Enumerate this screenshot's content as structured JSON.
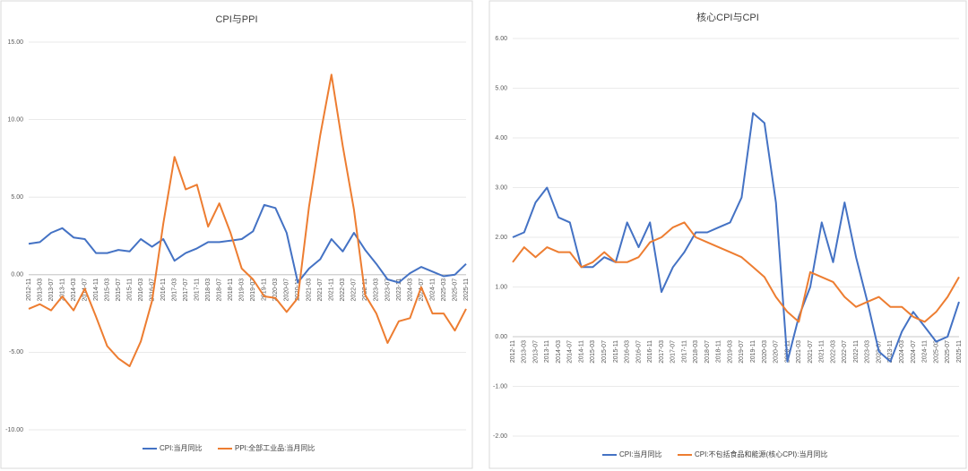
{
  "chart_data": [
    {
      "type": "line",
      "title": "CPI与PPI",
      "categories": [
        "2012-11",
        "2013-03",
        "2013-07",
        "2013-11",
        "2014-03",
        "2014-07",
        "2014-11",
        "2015-03",
        "2015-07",
        "2015-11",
        "2016-03",
        "2016-07",
        "2016-11",
        "2017-03",
        "2017-07",
        "2017-11",
        "2018-03",
        "2018-07",
        "2018-11",
        "2019-03",
        "2019-07",
        "2019-11",
        "2020-03",
        "2020-07",
        "2020-11",
        "2021-03",
        "2021-07",
        "2021-11",
        "2022-03",
        "2022-07",
        "2022-11",
        "2023-03",
        "2023-07",
        "2023-11",
        "2024-03",
        "2024-07",
        "2024-11",
        "2025-03",
        "2025-07",
        "2025-11"
      ],
      "series": [
        {
          "name": "CPI:当月同比",
          "color": "#4472c4",
          "values": [
            2.0,
            2.1,
            2.7,
            3.0,
            2.4,
            2.3,
            1.4,
            1.4,
            1.6,
            1.5,
            2.3,
            1.8,
            2.3,
            0.9,
            1.4,
            1.7,
            2.1,
            2.1,
            2.2,
            2.3,
            2.8,
            4.5,
            4.3,
            2.7,
            -0.5,
            0.4,
            1.0,
            2.3,
            1.5,
            2.7,
            1.6,
            0.7,
            -0.3,
            -0.5,
            0.1,
            0.5,
            0.2,
            -0.1,
            0.0,
            0.7
          ]
        },
        {
          "name": "PPI:全部工业品:当月同比",
          "color": "#ed7d31",
          "values": [
            -2.2,
            -1.9,
            -2.3,
            -1.4,
            -2.3,
            -0.9,
            -2.7,
            -4.6,
            -5.4,
            -5.9,
            -4.3,
            -1.7,
            3.3,
            7.6,
            5.5,
            5.8,
            3.1,
            4.6,
            2.7,
            0.4,
            -0.3,
            -1.4,
            -1.5,
            -2.4,
            -1.5,
            4.4,
            9.0,
            12.9,
            8.3,
            4.2,
            -1.3,
            -2.5,
            -4.4,
            -3.0,
            -2.8,
            -0.8,
            -2.5,
            -2.5,
            -3.6,
            -2.2
          ]
        }
      ],
      "ylim": [
        -10,
        15
      ],
      "yticks": [
        {
          "value": -10,
          "label": "-10.00"
        },
        {
          "value": -5,
          "label": "-5.00"
        },
        {
          "value": 0,
          "label": "0.00"
        },
        {
          "value": 5,
          "label": "5.00"
        },
        {
          "value": 10,
          "label": "10.00"
        },
        {
          "value": 15,
          "label": "15.00"
        }
      ],
      "grid": true,
      "legend": "bottom"
    },
    {
      "type": "line",
      "title": "核心CPI与CPI",
      "categories": [
        "2012-11",
        "2013-03",
        "2013-07",
        "2013-11",
        "2014-03",
        "2014-07",
        "2014-11",
        "2015-03",
        "2015-07",
        "2015-11",
        "2016-03",
        "2016-07",
        "2016-11",
        "2017-03",
        "2017-07",
        "2017-11",
        "2018-03",
        "2018-07",
        "2018-11",
        "2019-03",
        "2019-07",
        "2019-11",
        "2020-03",
        "2020-07",
        "2020-11",
        "2021-03",
        "2021-07",
        "2021-11",
        "2022-03",
        "2022-07",
        "2022-11",
        "2023-03",
        "2023-07",
        "2023-11",
        "2024-03",
        "2024-07",
        "2024-11",
        "2025-03",
        "2025-07",
        "2025-11"
      ],
      "series": [
        {
          "name": "CPI:当月同比",
          "color": "#4472c4",
          "values": [
            2.0,
            2.1,
            2.7,
            3.0,
            2.4,
            2.3,
            1.4,
            1.4,
            1.6,
            1.5,
            2.3,
            1.8,
            2.3,
            0.9,
            1.4,
            1.7,
            2.1,
            2.1,
            2.2,
            2.3,
            2.8,
            4.5,
            4.3,
            2.7,
            -0.5,
            0.4,
            1.0,
            2.3,
            1.5,
            2.7,
            1.6,
            0.7,
            -0.3,
            -0.5,
            0.1,
            0.5,
            0.2,
            -0.1,
            0.0,
            0.7
          ]
        },
        {
          "name": "CPI:不包括食品和能源(核心CPI):当月同比",
          "color": "#ed7d31",
          "values": [
            1.5,
            1.8,
            1.6,
            1.8,
            1.7,
            1.7,
            1.4,
            1.5,
            1.7,
            1.5,
            1.5,
            1.6,
            1.9,
            2.0,
            2.2,
            2.3,
            2.0,
            1.9,
            1.8,
            1.7,
            1.6,
            1.4,
            1.2,
            0.8,
            0.5,
            0.3,
            1.3,
            1.2,
            1.1,
            0.8,
            0.6,
            0.7,
            0.8,
            0.6,
            0.6,
            0.4,
            0.3,
            0.5,
            0.8,
            1.2
          ]
        }
      ],
      "ylim": [
        -2,
        6
      ],
      "yticks": [
        {
          "value": -2,
          "label": "-2.00"
        },
        {
          "value": -1,
          "label": "-1.00"
        },
        {
          "value": 0,
          "label": "0.00"
        },
        {
          "value": 1,
          "label": "1.00"
        },
        {
          "value": 2,
          "label": "2.00"
        },
        {
          "value": 3,
          "label": "3.00"
        },
        {
          "value": 4,
          "label": "4.00"
        },
        {
          "value": 5,
          "label": "5.00"
        },
        {
          "value": 6,
          "label": "6.00"
        }
      ],
      "grid": true,
      "legend": "bottom"
    }
  ]
}
